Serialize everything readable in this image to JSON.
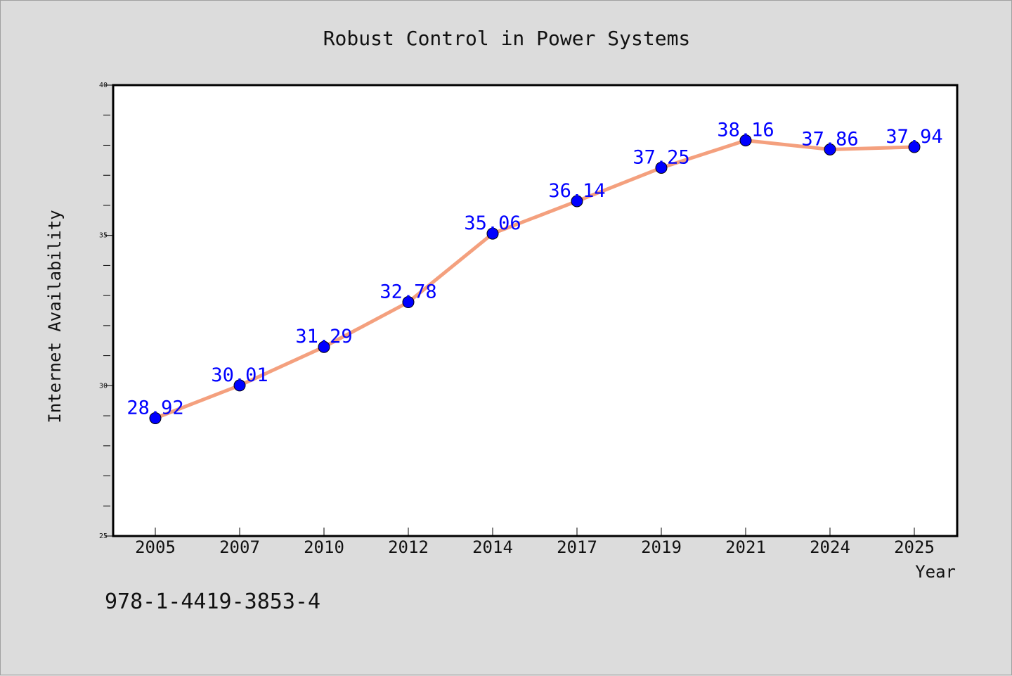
{
  "chart_data": {
    "type": "line",
    "title": "Robust Control in Power Systems",
    "xlabel": "Year",
    "ylabel": "Internet Availability",
    "categories": [
      "2005",
      "2007",
      "2010",
      "2012",
      "2014",
      "2017",
      "2019",
      "2021",
      "2024",
      "2025"
    ],
    "series": [
      {
        "values": [
          28.92,
          30.01,
          31.29,
          32.78,
          35.06,
          36.14,
          37.25,
          38.16,
          37.86,
          37.94
        ]
      }
    ],
    "data_labels": [
      "28.92",
      "30.01",
      "31.29",
      "32.78",
      "35.06",
      "36.14",
      "37.25",
      "38.16",
      "37.86",
      "37.94"
    ],
    "ylim": [
      25,
      40
    ],
    "yticks": [
      25,
      30,
      35,
      40
    ],
    "grid": false,
    "line_color": "#f4a07e",
    "marker_color": "#0000ff",
    "label_color": "#0000ff"
  },
  "footer": {
    "code": "978-1-4419-3853-4"
  }
}
